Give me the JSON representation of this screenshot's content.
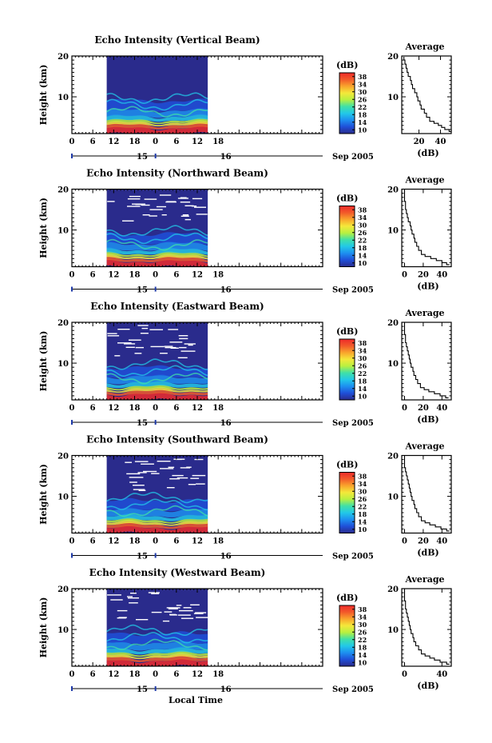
{
  "figure": {
    "x_axis_label": "Local Time",
    "colorbar_unit": "(dB)",
    "colorbar_ticks": [
      10,
      14,
      18,
      22,
      26,
      30,
      34,
      38
    ],
    "colormap": [
      "#2a2b8c",
      "#1f4fd8",
      "#1d8ff0",
      "#22c8e8",
      "#3fe0a8",
      "#b8f040",
      "#f4e83a",
      "#f9a52c",
      "#f25a2a",
      "#ee2a2a"
    ],
    "empty_block_color": "#ffffff"
  },
  "chart_data": [
    {
      "type": "heatmap",
      "title": "Echo Intensity (Vertical Beam)",
      "ylabel": "Height (km)",
      "ylim": [
        1,
        20
      ],
      "yticks": [
        10,
        20
      ],
      "x_ticks": [
        "0",
        "6",
        "12",
        "18",
        "0",
        "6",
        "12",
        "18"
      ],
      "date_labels": [
        "15",
        "16"
      ],
      "date_suffix": "Sep 2005",
      "data_start_local_time": "10:00 on 15 Sep 2005",
      "data_end_local_time": "15:00 on 16 Sep 2005",
      "profile": {
        "title": "Average",
        "xlabel": "(dB)",
        "xticks": [
          20,
          40
        ],
        "xlim": [
          4,
          50
        ],
        "ylim": [
          1,
          20
        ],
        "yticks": [
          10,
          20
        ],
        "height_km": [
          1.5,
          2,
          2.5,
          3,
          3.5,
          4,
          5,
          6,
          7,
          8,
          9,
          10,
          11,
          12,
          13,
          14,
          15,
          16,
          17,
          18,
          19,
          19.8
        ],
        "intensity_db": [
          50,
          48,
          44,
          41,
          38,
          34,
          30,
          27,
          25,
          22,
          21,
          19,
          18,
          16,
          14,
          13,
          12,
          10,
          9,
          8,
          7,
          6
        ]
      }
    },
    {
      "type": "heatmap",
      "title": "Echo Intensity (Northward Beam)",
      "ylabel": "Height (km)",
      "ylim": [
        1,
        20
      ],
      "yticks": [
        10,
        20
      ],
      "x_ticks": [
        "0",
        "6",
        "12",
        "18",
        "0",
        "6",
        "12",
        "18"
      ],
      "date_labels": [
        "15",
        "16"
      ],
      "date_suffix": "Sep 2005",
      "data_start_local_time": "10:00 on 15 Sep 2005",
      "data_end_local_time": "15:00 on 16 Sep 2005",
      "profile": {
        "title": "Average",
        "xlabel": "(dB)",
        "xticks": [
          0,
          20,
          40
        ],
        "xlim": [
          -3,
          50
        ],
        "ylim": [
          1,
          20
        ],
        "yticks": [
          10,
          20
        ],
        "height_km": [
          1.5,
          2,
          2.5,
          3,
          3.5,
          4,
          5,
          6,
          7,
          8,
          9,
          10,
          11,
          12,
          13,
          14,
          15,
          16,
          17,
          18,
          19,
          19.8
        ],
        "intensity_db": [
          48,
          45,
          40,
          34,
          28,
          22,
          18,
          15,
          13,
          11,
          10,
          8,
          7,
          6,
          4,
          3,
          2,
          1,
          1,
          0,
          0,
          0
        ]
      }
    },
    {
      "type": "heatmap",
      "title": "Echo Intensity (Eastward Beam)",
      "ylabel": "Height (km)",
      "ylim": [
        1,
        20
      ],
      "yticks": [
        10,
        20
      ],
      "x_ticks": [
        "0",
        "6",
        "12",
        "18",
        "0",
        "6",
        "12",
        "18"
      ],
      "date_labels": [
        "15",
        "16"
      ],
      "date_suffix": "Sep 2005",
      "data_start_local_time": "10:00 on 15 Sep 2005",
      "data_end_local_time": "15:00 on 16 Sep 2005",
      "profile": {
        "title": "Average",
        "xlabel": "(dB)",
        "xticks": [
          0,
          20,
          40
        ],
        "xlim": [
          -3,
          50
        ],
        "ylim": [
          1,
          20
        ],
        "yticks": [
          10,
          20
        ],
        "height_km": [
          1.5,
          2,
          2.5,
          3,
          3.5,
          4,
          5,
          6,
          7,
          8,
          9,
          10,
          11,
          12,
          13,
          14,
          15,
          16,
          17,
          18,
          19,
          19.8
        ],
        "intensity_db": [
          47,
          44,
          38,
          32,
          26,
          21,
          17,
          14,
          12,
          10,
          9,
          7,
          6,
          5,
          4,
          3,
          2,
          1,
          1,
          0,
          0,
          0
        ]
      }
    },
    {
      "type": "heatmap",
      "title": "Echo Intensity (Southward Beam)",
      "ylabel": "Height (km)",
      "ylim": [
        1,
        20
      ],
      "yticks": [
        10,
        20
      ],
      "x_ticks": [
        "0",
        "6",
        "12",
        "18",
        "0",
        "6",
        "12",
        "18"
      ],
      "date_labels": [
        "15",
        "16"
      ],
      "date_suffix": "Sep 2005",
      "data_start_local_time": "10:00 on 15 Sep 2005",
      "data_end_local_time": "15:00 on 16 Sep 2005",
      "profile": {
        "title": "Average",
        "xlabel": "(dB)",
        "xticks": [
          0,
          20,
          40
        ],
        "xlim": [
          -3,
          50
        ],
        "ylim": [
          1,
          20
        ],
        "yticks": [
          10,
          20
        ],
        "height_km": [
          1.5,
          2,
          2.5,
          3,
          3.5,
          4,
          5,
          6,
          7,
          8,
          9,
          10,
          11,
          12,
          13,
          14,
          15,
          16,
          17,
          18,
          19,
          19.8
        ],
        "intensity_db": [
          48,
          45,
          39,
          33,
          27,
          22,
          18,
          15,
          13,
          11,
          10,
          8,
          7,
          6,
          5,
          4,
          3,
          2,
          1,
          0,
          0,
          0
        ]
      }
    },
    {
      "type": "heatmap",
      "title": "Echo Intensity (Westward Beam)",
      "ylabel": "Height (km)",
      "ylim": [
        1,
        20
      ],
      "yticks": [
        10,
        20
      ],
      "x_ticks": [
        "0",
        "6",
        "12",
        "18",
        "0",
        "6",
        "12",
        "18"
      ],
      "date_labels": [
        "15",
        "16"
      ],
      "date_suffix": "Sep 2005",
      "data_start_local_time": "10:00 on 15 Sep 2005",
      "data_end_local_time": "15:00 on 16 Sep 2005",
      "profile": {
        "title": "Average",
        "xlabel": "(dB)",
        "xticks": [
          0,
          40
        ],
        "xlim": [
          -3,
          50
        ],
        "ylim": [
          1,
          20
        ],
        "yticks": [
          10,
          20
        ],
        "height_km": [
          1.5,
          2,
          2.5,
          3,
          3.5,
          4,
          5,
          6,
          7,
          8,
          9,
          10,
          11,
          12,
          13,
          14,
          15,
          16,
          17,
          18,
          19,
          19.8
        ],
        "intensity_db": [
          48,
          45,
          38,
          32,
          27,
          22,
          18,
          15,
          12,
          10,
          9,
          7,
          6,
          5,
          4,
          3,
          2,
          1,
          1,
          0,
          0,
          0
        ]
      }
    }
  ]
}
